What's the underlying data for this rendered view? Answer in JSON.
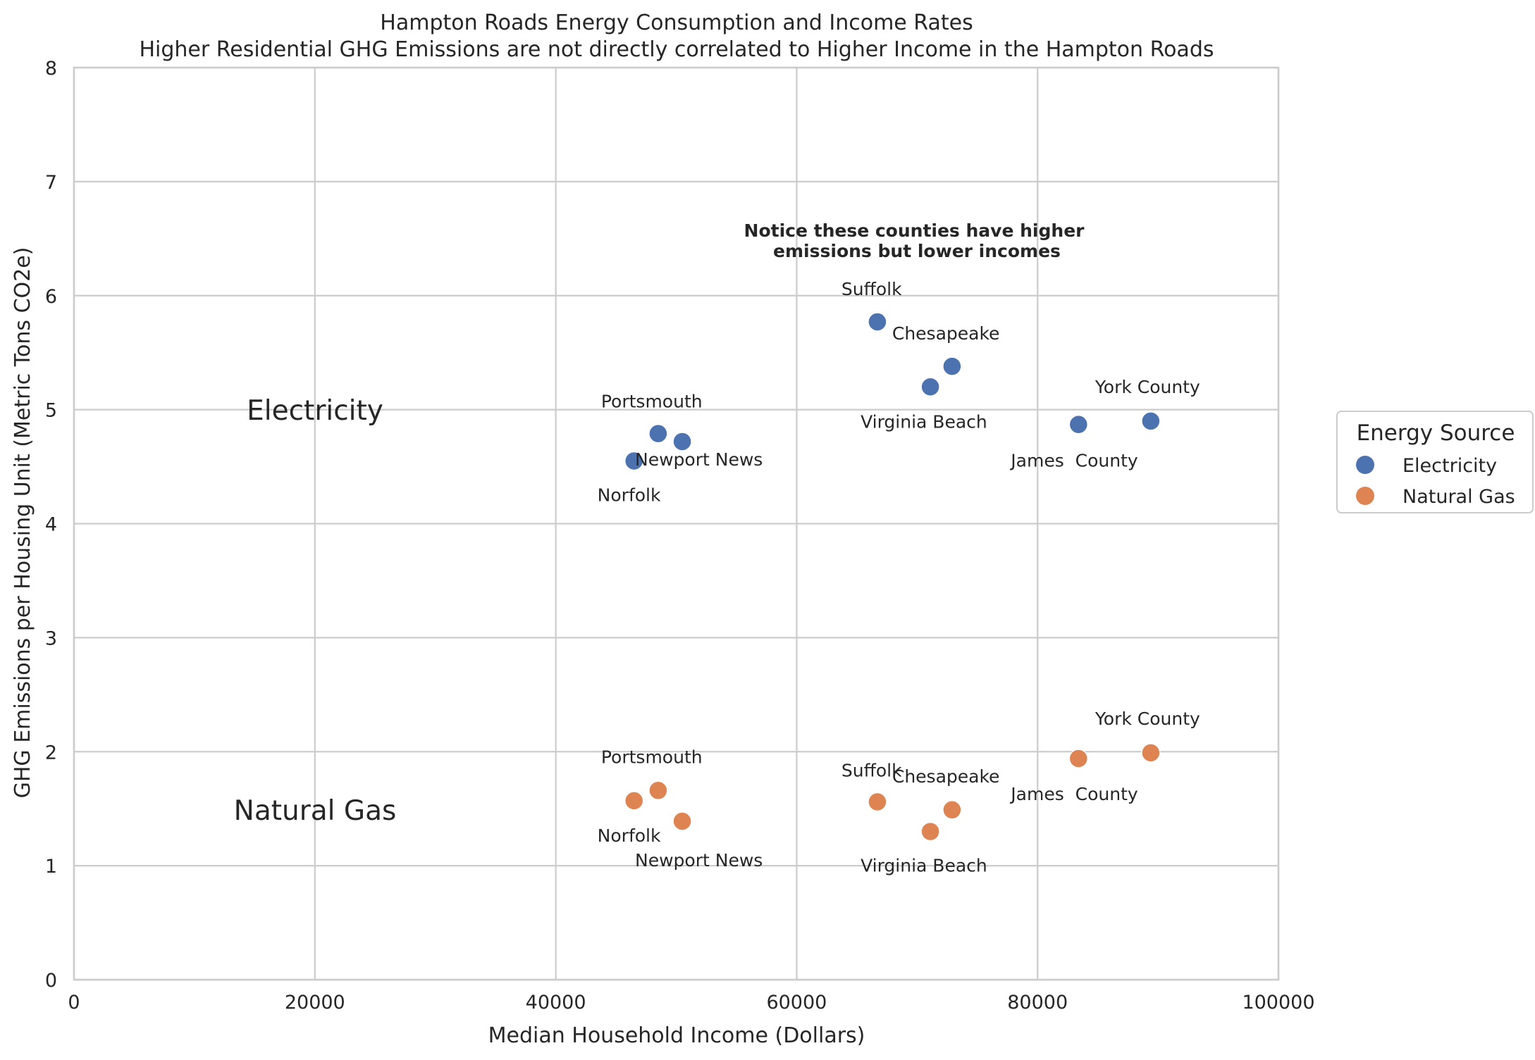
{
  "chart_data": {
    "type": "scatter",
    "title": "Hampton Roads Energy Consumption and Income Rates",
    "subtitle": "Higher Residential GHG Emissions are not directly correlated to Higher Income in the Hampton Roads",
    "xlabel": "Median Household Income (Dollars)",
    "ylabel": "GHG Emissions per Housing Unit (Metric Tons CO2e)",
    "xlim": [
      0,
      100000
    ],
    "ylim": [
      0,
      8
    ],
    "xticks": [
      "0",
      "20000",
      "40000",
      "60000",
      "80000",
      "100000"
    ],
    "yticks": [
      "0",
      "1",
      "2",
      "3",
      "4",
      "5",
      "6",
      "7",
      "8"
    ],
    "grid": true,
    "legend": {
      "title": "Energy Source",
      "placement": "outside-right",
      "entries": [
        "Electricity",
        "Natural Gas"
      ]
    },
    "series": [
      {
        "name": "Electricity",
        "color": "#4c72b0",
        "points": [
          {
            "label": "Norfolk",
            "x": 46500,
            "y": 4.55
          },
          {
            "label": "Portsmouth",
            "x": 48500,
            "y": 4.79
          },
          {
            "label": "Newport News",
            "x": 50500,
            "y": 4.72
          },
          {
            "label": "Suffolk",
            "x": 66700,
            "y": 5.77
          },
          {
            "label": "Virginia Beach",
            "x": 71100,
            "y": 5.2
          },
          {
            "label": "Chesapeake",
            "x": 72900,
            "y": 5.38
          },
          {
            "label": "James  County",
            "x": 83400,
            "y": 4.87
          },
          {
            "label": "York County",
            "x": 89400,
            "y": 4.9
          }
        ]
      },
      {
        "name": "Natural Gas",
        "color": "#dd8452",
        "points": [
          {
            "label": "Norfolk",
            "x": 46500,
            "y": 1.57
          },
          {
            "label": "Portsmouth",
            "x": 48500,
            "y": 1.66
          },
          {
            "label": "Newport News",
            "x": 50500,
            "y": 1.39
          },
          {
            "label": "Suffolk",
            "x": 66700,
            "y": 1.56
          },
          {
            "label": "Virginia Beach",
            "x": 71100,
            "y": 1.3
          },
          {
            "label": "Chesapeake",
            "x": 72900,
            "y": 1.49
          },
          {
            "label": "James  County",
            "x": 83400,
            "y": 1.94
          },
          {
            "label": "York County",
            "x": 89400,
            "y": 1.99
          }
        ]
      }
    ],
    "annotations": {
      "group_electricity": "Electricity",
      "group_natural_gas": "Natural Gas",
      "note_line1": "Notice these counties have higher",
      "note_line2": "emissions but lower incomes"
    }
  }
}
